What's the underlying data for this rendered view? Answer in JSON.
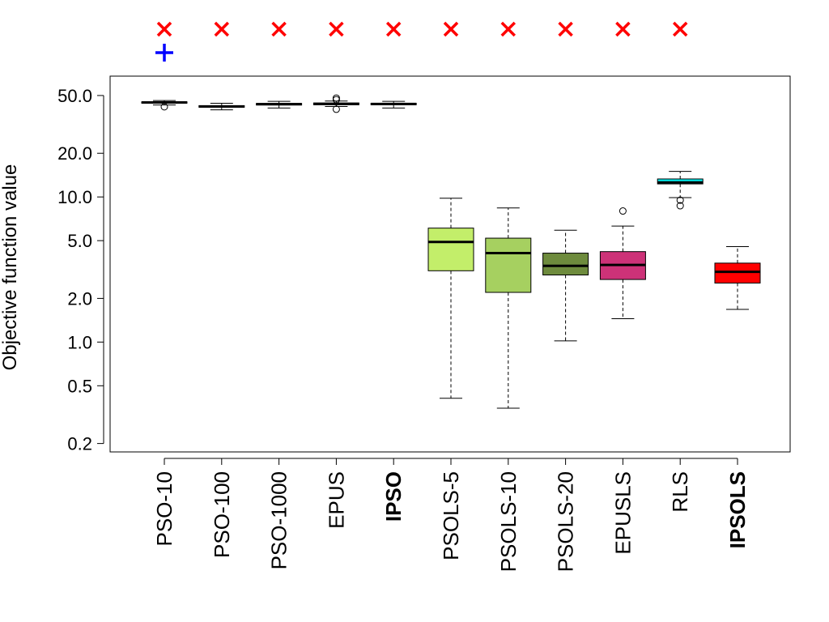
{
  "chart_data": {
    "type": "box",
    "ylabel": "Objective function value",
    "xlabel": "",
    "title": "",
    "yscale": "log",
    "ylim": [
      0.175,
      68
    ],
    "yticks": [
      0.2,
      0.5,
      1.0,
      2.0,
      5.0,
      10.0,
      20.0,
      50.0
    ],
    "ytick_labels": [
      "0.2",
      "0.5",
      "1.0",
      "2.0",
      "5.0",
      "10.0",
      "20.0",
      "50.0"
    ],
    "grid": false,
    "legend": "none",
    "categories": [
      "PSO-10",
      "PSO-100",
      "PSO-1000",
      "EPUS",
      "IPSO",
      "PSOLS-5",
      "PSOLS-10",
      "PSOLS-20",
      "EPUSLS",
      "RLS",
      "IPSOLS"
    ],
    "bold_categories": [
      "IPSO",
      "IPSOLS"
    ],
    "boxes": [
      {
        "label": "PSO-10",
        "whisker_low": 43.0,
        "q1": 44.3,
        "median": 44.8,
        "q3": 45.2,
        "whisker_high": 46.2,
        "outliers": [
          41.8
        ],
        "fill": "#ffffff"
      },
      {
        "label": "PSO-100",
        "whisker_low": 39.8,
        "q1": 41.5,
        "median": 42.0,
        "q3": 42.6,
        "whisker_high": 44.2,
        "outliers": [],
        "fill": "#ffffff"
      },
      {
        "label": "PSO-1000",
        "whisker_low": 41.0,
        "q1": 43.0,
        "median": 43.6,
        "q3": 44.1,
        "whisker_high": 45.6,
        "outliers": [],
        "fill": "#ffffff"
      },
      {
        "label": "EPUS",
        "whisker_low": 42.0,
        "q1": 43.2,
        "median": 43.8,
        "q3": 44.4,
        "whisker_high": 45.8,
        "outliers": [
          40.2,
          48.0,
          46.8
        ],
        "fill": "#ffffff"
      },
      {
        "label": "IPSO",
        "whisker_low": 41.0,
        "q1": 43.2,
        "median": 43.7,
        "q3": 44.2,
        "whisker_high": 45.6,
        "outliers": [],
        "fill": "#ffffff"
      },
      {
        "label": "PSOLS-5",
        "whisker_low": 0.41,
        "q1": 3.1,
        "median": 4.9,
        "q3": 6.1,
        "whisker_high": 9.8,
        "outliers": [],
        "fill": "#c3ee6a"
      },
      {
        "label": "PSOLS-10",
        "whisker_low": 0.35,
        "q1": 2.2,
        "median": 4.1,
        "q3": 5.2,
        "whisker_high": 8.4,
        "outliers": [],
        "fill": "#a6d060"
      },
      {
        "label": "PSOLS-20",
        "whisker_low": 1.02,
        "q1": 2.9,
        "median": 3.35,
        "q3": 4.1,
        "whisker_high": 5.9,
        "outliers": [],
        "fill": "#6e8b3d"
      },
      {
        "label": "EPUSLS",
        "whisker_low": 1.45,
        "q1": 2.7,
        "median": 3.4,
        "q3": 4.2,
        "whisker_high": 6.3,
        "outliers": [
          8.0
        ],
        "fill": "#cd3278"
      },
      {
        "label": "RLS",
        "whisker_low": 9.9,
        "q1": 12.3,
        "median": 12.6,
        "q3": 13.3,
        "whisker_high": 15.0,
        "outliers": [
          8.7,
          9.5
        ],
        "fill": "#00eeee"
      },
      {
        "label": "IPSOLS",
        "whisker_low": 1.68,
        "q1": 2.55,
        "median": 3.05,
        "q3": 3.5,
        "whisker_high": 4.55,
        "outliers": [],
        "fill": "#ff0000"
      }
    ],
    "markers_top": [
      {
        "label": "PSO-10",
        "symbols": [
          "x",
          "+"
        ]
      },
      {
        "label": "PSO-100",
        "symbols": [
          "x"
        ]
      },
      {
        "label": "PSO-1000",
        "symbols": [
          "x"
        ]
      },
      {
        "label": "EPUS",
        "symbols": [
          "x"
        ]
      },
      {
        "label": "IPSO",
        "symbols": [
          "x"
        ]
      },
      {
        "label": "PSOLS-5",
        "symbols": [
          "x"
        ]
      },
      {
        "label": "PSOLS-10",
        "symbols": [
          "x"
        ]
      },
      {
        "label": "PSOLS-20",
        "symbols": [
          "x"
        ]
      },
      {
        "label": "EPUSLS",
        "symbols": [
          "x"
        ]
      },
      {
        "label": "RLS",
        "symbols": [
          "x"
        ]
      },
      {
        "label": "IPSOLS",
        "symbols": []
      }
    ],
    "marker_colors": {
      "x": "#ff0000",
      "+": "#0000ff"
    }
  }
}
